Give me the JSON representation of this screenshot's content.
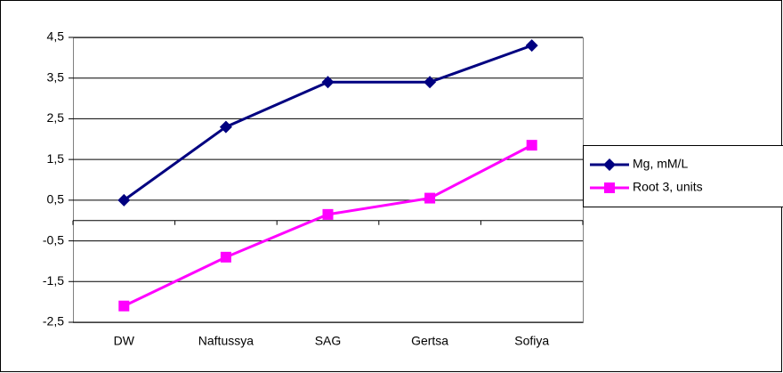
{
  "chart_data": {
    "type": "line",
    "categories": [
      "DW",
      "Naftussya",
      "SAG",
      "Gertsa",
      "Sofiya"
    ],
    "series": [
      {
        "name": "Mg, mM/L",
        "color": "#000080",
        "marker": "diamond",
        "values": [
          0.5,
          2.3,
          3.4,
          3.4,
          4.3
        ]
      },
      {
        "name": "Root 3, units",
        "color": "#ff00ff",
        "marker": "square",
        "values": [
          -2.1,
          -0.9,
          0.15,
          0.55,
          1.85
        ]
      }
    ],
    "ylim": [
      -2.5,
      4.5
    ],
    "yticks": [
      {
        "value": -2.5,
        "label": "-2,5"
      },
      {
        "value": -1.5,
        "label": "-1,5"
      },
      {
        "value": -0.5,
        "label": "-0,5"
      },
      {
        "value": 0.5,
        "label": "0,5"
      },
      {
        "value": 1.5,
        "label": "1,5"
      },
      {
        "value": 2.5,
        "label": "2,5"
      },
      {
        "value": 3.5,
        "label": "3,5"
      },
      {
        "value": 4.5,
        "label": "4,5"
      }
    ],
    "grid": true,
    "legend": "right"
  }
}
